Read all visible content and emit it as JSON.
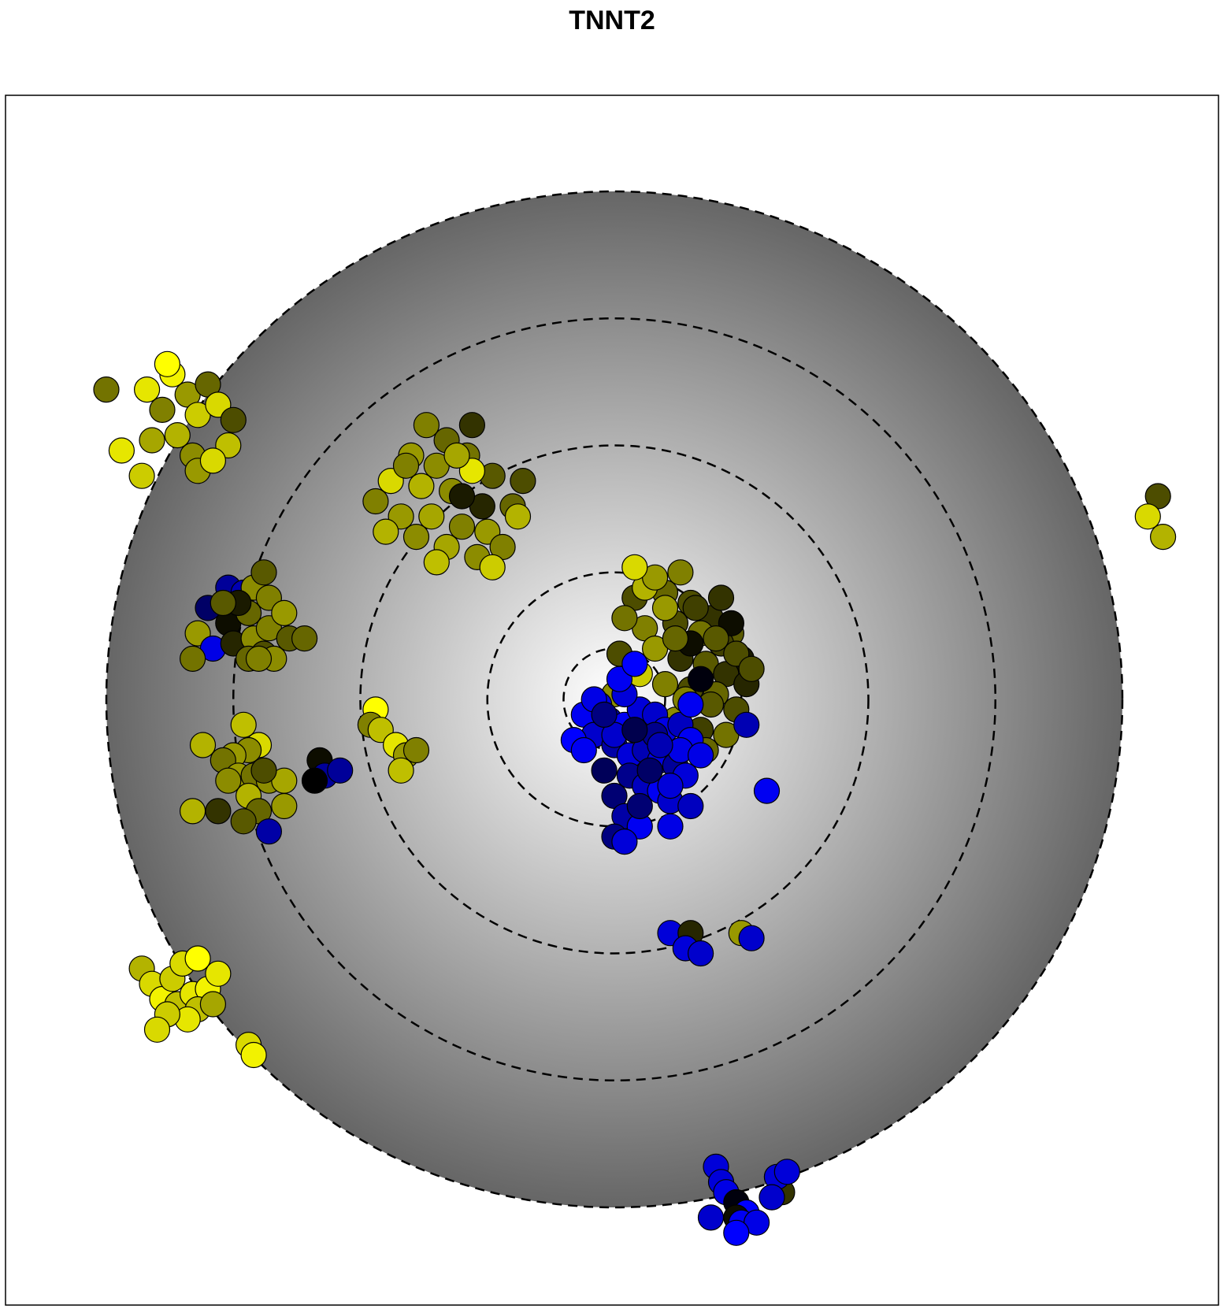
{
  "chart_data": {
    "type": "scatter",
    "title": "TNNT2",
    "xlabel": "",
    "ylabel": "",
    "xlim": [
      -1.2,
      1.2
    ],
    "ylim": [
      -1.2,
      1.2
    ],
    "axes_visible": false,
    "grid": false,
    "background": {
      "shape": "radial-gradient-disc",
      "radius": 1.0,
      "center_color": "#ffffff",
      "edge_color": "#666666"
    },
    "rings": {
      "style": "dashed",
      "color": "#000000",
      "radii": [
        0.1,
        0.25,
        0.5,
        0.75,
        1.0
      ]
    },
    "color_scale": {
      "low": "#0000ff",
      "mid": "#000000",
      "high": "#ffff00",
      "note_range": [
        -1,
        1
      ]
    },
    "points": [
      [
        -0.92,
        0.61,
        0.9
      ],
      [
        -0.89,
        0.57,
        0.5
      ],
      [
        -0.87,
        0.64,
        0.95
      ],
      [
        -0.84,
        0.6,
        0.6
      ],
      [
        -0.82,
        0.56,
        0.8
      ],
      [
        -0.8,
        0.62,
        0.4
      ],
      [
        -0.86,
        0.52,
        0.7
      ],
      [
        -0.78,
        0.58,
        0.85
      ],
      [
        -0.75,
        0.55,
        0.3
      ],
      [
        -0.91,
        0.51,
        0.65
      ],
      [
        -0.83,
        0.48,
        0.55
      ],
      [
        -0.76,
        0.5,
        0.75
      ],
      [
        -0.93,
        0.44,
        0.8
      ],
      [
        -0.82,
        0.45,
        0.6
      ],
      [
        -1.0,
        0.61,
        0.45
      ],
      [
        -0.97,
        0.49,
        0.9
      ],
      [
        -0.88,
        0.66,
        1.0
      ],
      [
        -0.79,
        0.47,
        0.85
      ],
      [
        -0.37,
        0.54,
        0.5
      ],
      [
        -0.33,
        0.51,
        0.4
      ],
      [
        -0.28,
        0.54,
        0.2
      ],
      [
        -0.4,
        0.48,
        0.6
      ],
      [
        -0.35,
        0.46,
        0.55
      ],
      [
        -0.29,
        0.48,
        0.45
      ],
      [
        -0.24,
        0.44,
        0.35
      ],
      [
        -0.38,
        0.42,
        0.7
      ],
      [
        -0.32,
        0.41,
        0.55
      ],
      [
        -0.26,
        0.38,
        0.15
      ],
      [
        -0.44,
        0.43,
        0.85
      ],
      [
        -0.42,
        0.36,
        0.6
      ],
      [
        -0.36,
        0.36,
        0.65
      ],
      [
        -0.3,
        0.34,
        0.5
      ],
      [
        -0.25,
        0.33,
        0.6
      ],
      [
        -0.2,
        0.38,
        0.4
      ],
      [
        -0.18,
        0.43,
        0.3
      ],
      [
        -0.47,
        0.39,
        0.5
      ],
      [
        -0.39,
        0.32,
        0.55
      ],
      [
        -0.33,
        0.3,
        0.65
      ],
      [
        -0.27,
        0.28,
        0.55
      ],
      [
        -0.22,
        0.3,
        0.5
      ],
      [
        -0.45,
        0.33,
        0.7
      ],
      [
        -0.35,
        0.27,
        0.75
      ],
      [
        -0.3,
        0.4,
        0.1
      ],
      [
        -0.28,
        0.45,
        0.9
      ],
      [
        -0.41,
        0.46,
        0.5
      ],
      [
        -0.19,
        0.36,
        0.7
      ],
      [
        -0.24,
        0.26,
        0.8
      ],
      [
        -0.31,
        0.48,
        0.65
      ],
      [
        0.04,
        0.2,
        0.3
      ],
      [
        0.1,
        0.21,
        0.4
      ],
      [
        0.15,
        0.19,
        0.3
      ],
      [
        0.19,
        0.16,
        0.2
      ],
      [
        0.23,
        0.13,
        0.35
      ],
      [
        0.06,
        0.14,
        0.5
      ],
      [
        0.12,
        0.15,
        0.3
      ],
      [
        0.17,
        0.13,
        0.45
      ],
      [
        0.21,
        0.11,
        0.25
      ],
      [
        0.25,
        0.08,
        0.1
      ],
      [
        0.08,
        0.1,
        0.6
      ],
      [
        0.13,
        0.08,
        0.2
      ],
      [
        0.18,
        0.07,
        0.35
      ],
      [
        0.22,
        0.05,
        0.2
      ],
      [
        0.26,
        0.03,
        0.15
      ],
      [
        0.1,
        0.03,
        0.5
      ],
      [
        0.15,
        0.02,
        0.3
      ],
      [
        0.2,
        0.01,
        0.4
      ],
      [
        0.24,
        -0.02,
        0.3
      ],
      [
        0.12,
        -0.04,
        0.55
      ],
      [
        0.17,
        -0.06,
        0.25
      ],
      [
        0.22,
        -0.07,
        0.45
      ],
      [
        0.06,
        0.22,
        0.7
      ],
      [
        0.02,
        0.16,
        0.45
      ],
      [
        0.05,
        0.05,
        0.8
      ],
      [
        0.15,
        0.11,
        0.05
      ],
      [
        0.19,
        -0.01,
        0.35
      ],
      [
        0.24,
        0.09,
        0.3
      ],
      [
        0.13,
        0.25,
        0.5
      ],
      [
        0.21,
        0.2,
        0.2
      ],
      [
        0.08,
        0.24,
        0.6
      ],
      [
        0.01,
        0.09,
        0.3
      ],
      [
        0.18,
        -0.1,
        0.4
      ],
      [
        0.23,
        0.15,
        0.05
      ],
      [
        0.1,
        0.18,
        0.6
      ],
      [
        0.16,
        0.18,
        0.25
      ],
      [
        0.27,
        0.06,
        0.3
      ],
      [
        0.0,
        0.01,
        0.55
      ],
      [
        0.04,
        0.26,
        0.85
      ],
      [
        0.14,
        0.0,
        0.5
      ],
      [
        0.17,
        0.04,
        -0.05
      ],
      [
        0.09,
        -0.07,
        0.45
      ],
      [
        0.2,
        0.12,
        0.35
      ],
      [
        0.12,
        0.12,
        0.4
      ],
      [
        -0.03,
        -0.01,
        -0.9
      ],
      [
        -0.01,
        -0.04,
        -0.7
      ],
      [
        0.02,
        -0.05,
        -0.95
      ],
      [
        0.05,
        -0.02,
        -0.85
      ],
      [
        0.08,
        -0.03,
        -0.8
      ],
      [
        0.1,
        -0.06,
        -0.9
      ],
      [
        0.13,
        -0.05,
        -0.75
      ],
      [
        0.15,
        -0.08,
        -0.95
      ],
      [
        -0.06,
        -0.03,
        -0.95
      ],
      [
        -0.04,
        -0.07,
        -0.8
      ],
      [
        -0.08,
        -0.08,
        -1.0
      ],
      [
        0.0,
        -0.09,
        -0.65
      ],
      [
        0.03,
        -0.11,
        -0.85
      ],
      [
        0.06,
        -0.1,
        -0.7
      ],
      [
        0.09,
        -0.12,
        -0.9
      ],
      [
        0.12,
        -0.13,
        -0.6
      ],
      [
        0.14,
        -0.15,
        -0.85
      ],
      [
        0.03,
        -0.15,
        -0.55
      ],
      [
        0.06,
        -0.17,
        -0.75
      ],
      [
        0.09,
        -0.18,
        -0.95
      ],
      [
        0.11,
        -0.2,
        -0.8
      ],
      [
        0.0,
        -0.19,
        -0.45
      ],
      [
        0.02,
        -0.23,
        -0.65
      ],
      [
        0.05,
        -0.25,
        -0.95
      ],
      [
        0.0,
        -0.27,
        -0.5
      ],
      [
        0.02,
        -0.28,
        -0.85
      ],
      [
        0.11,
        -0.25,
        -0.9
      ],
      [
        0.15,
        -0.21,
        -0.75
      ],
      [
        -0.04,
        0.0,
        -0.9
      ],
      [
        0.02,
        0.01,
        -0.85
      ],
      [
        0.08,
        -0.07,
        -0.55
      ],
      [
        -0.02,
        -0.14,
        -0.35
      ],
      [
        0.05,
        -0.21,
        -0.45
      ],
      [
        0.13,
        -0.1,
        -0.9
      ],
      [
        0.01,
        0.04,
        -0.95
      ],
      [
        0.07,
        -0.14,
        -0.4
      ],
      [
        0.17,
        -0.11,
        -0.9
      ],
      [
        -0.06,
        -0.1,
        -0.95
      ],
      [
        0.04,
        0.07,
        -1.0
      ],
      [
        0.0,
        -0.07,
        -0.8
      ],
      [
        -0.02,
        -0.03,
        -0.5
      ],
      [
        0.15,
        -0.01,
        -0.95
      ],
      [
        0.09,
        -0.09,
        -0.7
      ],
      [
        0.11,
        -0.17,
        -0.85
      ],
      [
        0.04,
        -0.06,
        -0.3
      ],
      [
        0.26,
        -0.05,
        -0.7
      ],
      [
        0.3,
        -0.18,
        -0.95
      ],
      [
        -0.76,
        0.22,
        -0.6
      ],
      [
        -0.73,
        0.21,
        -0.7
      ],
      [
        -0.71,
        0.22,
        0.55
      ],
      [
        -0.69,
        0.25,
        0.35
      ],
      [
        -0.8,
        0.18,
        -0.4
      ],
      [
        -0.76,
        0.15,
        0.05
      ],
      [
        -0.72,
        0.17,
        0.4
      ],
      [
        -0.68,
        0.2,
        0.5
      ],
      [
        -0.82,
        0.13,
        0.6
      ],
      [
        -0.79,
        0.1,
        -0.9
      ],
      [
        -0.75,
        0.11,
        0.15
      ],
      [
        -0.71,
        0.12,
        0.55
      ],
      [
        -0.68,
        0.14,
        0.5
      ],
      [
        -0.65,
        0.17,
        0.6
      ],
      [
        -0.64,
        0.12,
        0.35
      ],
      [
        -0.83,
        0.08,
        0.45
      ],
      [
        -0.72,
        0.08,
        0.4
      ],
      [
        -0.69,
        0.09,
        0.3
      ],
      [
        -0.67,
        0.08,
        0.55
      ],
      [
        -0.61,
        0.12,
        0.4
      ],
      [
        -0.74,
        0.19,
        0.1
      ],
      [
        -0.7,
        0.08,
        0.5
      ],
      [
        -0.77,
        0.19,
        0.35
      ],
      [
        -0.73,
        -0.05,
        0.75
      ],
      [
        -0.7,
        -0.09,
        0.85
      ],
      [
        -0.72,
        -0.1,
        0.55
      ],
      [
        -0.81,
        -0.09,
        0.7
      ],
      [
        -0.75,
        -0.11,
        0.6
      ],
      [
        -0.77,
        -0.12,
        0.45
      ],
      [
        -0.74,
        -0.15,
        0.6
      ],
      [
        -0.71,
        -0.15,
        0.45
      ],
      [
        -0.68,
        -0.16,
        0.55
      ],
      [
        -0.65,
        -0.16,
        0.65
      ],
      [
        -0.72,
        -0.19,
        0.7
      ],
      [
        -0.7,
        -0.22,
        0.4
      ],
      [
        -0.73,
        -0.24,
        0.35
      ],
      [
        -0.78,
        -0.22,
        0.2
      ],
      [
        -0.65,
        -0.21,
        0.6
      ],
      [
        -0.69,
        -0.14,
        0.3
      ],
      [
        -0.83,
        -0.22,
        0.7
      ],
      [
        -0.76,
        -0.16,
        0.55
      ],
      [
        -0.68,
        -0.26,
        -0.65
      ],
      [
        -0.58,
        -0.12,
        0.05
      ],
      [
        -0.57,
        -0.15,
        -0.6
      ],
      [
        -0.54,
        -0.14,
        -0.6
      ],
      [
        -0.59,
        -0.16,
        0.0
      ],
      [
        -0.47,
        -0.02,
        1.0
      ],
      [
        -0.48,
        -0.05,
        0.5
      ],
      [
        -0.46,
        -0.06,
        0.75
      ],
      [
        -0.43,
        -0.09,
        0.9
      ],
      [
        -0.41,
        -0.11,
        0.6
      ],
      [
        -0.39,
        -0.1,
        0.5
      ],
      [
        -0.42,
        -0.14,
        0.75
      ],
      [
        0.11,
        -0.46,
        -0.85
      ],
      [
        0.15,
        -0.46,
        0.15
      ],
      [
        0.14,
        -0.49,
        -0.85
      ],
      [
        0.17,
        -0.5,
        -0.8
      ],
      [
        0.25,
        -0.46,
        0.6
      ],
      [
        0.27,
        -0.47,
        -0.8
      ],
      [
        -0.93,
        -0.53,
        0.7
      ],
      [
        -0.91,
        -0.56,
        0.85
      ],
      [
        -0.89,
        -0.59,
        0.95
      ],
      [
        -0.87,
        -0.55,
        0.8
      ],
      [
        -0.85,
        -0.52,
        0.85
      ],
      [
        -0.86,
        -0.6,
        0.75
      ],
      [
        -0.83,
        -0.58,
        0.9
      ],
      [
        -0.8,
        -0.57,
        0.95
      ],
      [
        -0.82,
        -0.61,
        0.75
      ],
      [
        -0.79,
        -0.6,
        0.65
      ],
      [
        -0.84,
        -0.63,
        0.9
      ],
      [
        -0.82,
        -0.51,
        1.0
      ],
      [
        -0.78,
        -0.54,
        0.9
      ],
      [
        -0.88,
        -0.62,
        0.8
      ],
      [
        -0.9,
        -0.65,
        0.85
      ],
      [
        -0.72,
        -0.68,
        0.85
      ],
      [
        -0.71,
        -0.7,
        0.95
      ],
      [
        0.2,
        -0.92,
        -0.85
      ],
      [
        0.21,
        -0.95,
        -0.85
      ],
      [
        0.22,
        -0.97,
        -0.9
      ],
      [
        0.24,
        -0.99,
        -0.05
      ],
      [
        0.26,
        -1.01,
        -1.0
      ],
      [
        0.24,
        -1.02,
        0.05
      ],
      [
        0.19,
        -1.02,
        -0.8
      ],
      [
        0.25,
        -1.03,
        -0.95
      ],
      [
        0.28,
        -1.03,
        -0.9
      ],
      [
        0.24,
        -1.05,
        -1.0
      ],
      [
        0.33,
        -0.97,
        0.2
      ],
      [
        0.32,
        -0.94,
        -0.85
      ],
      [
        0.34,
        -0.93,
        -0.85
      ],
      [
        0.31,
        -0.98,
        -0.8
      ],
      [
        1.07,
        0.4,
        0.3
      ],
      [
        1.05,
        0.36,
        0.85
      ],
      [
        1.08,
        0.32,
        0.7
      ]
    ]
  }
}
